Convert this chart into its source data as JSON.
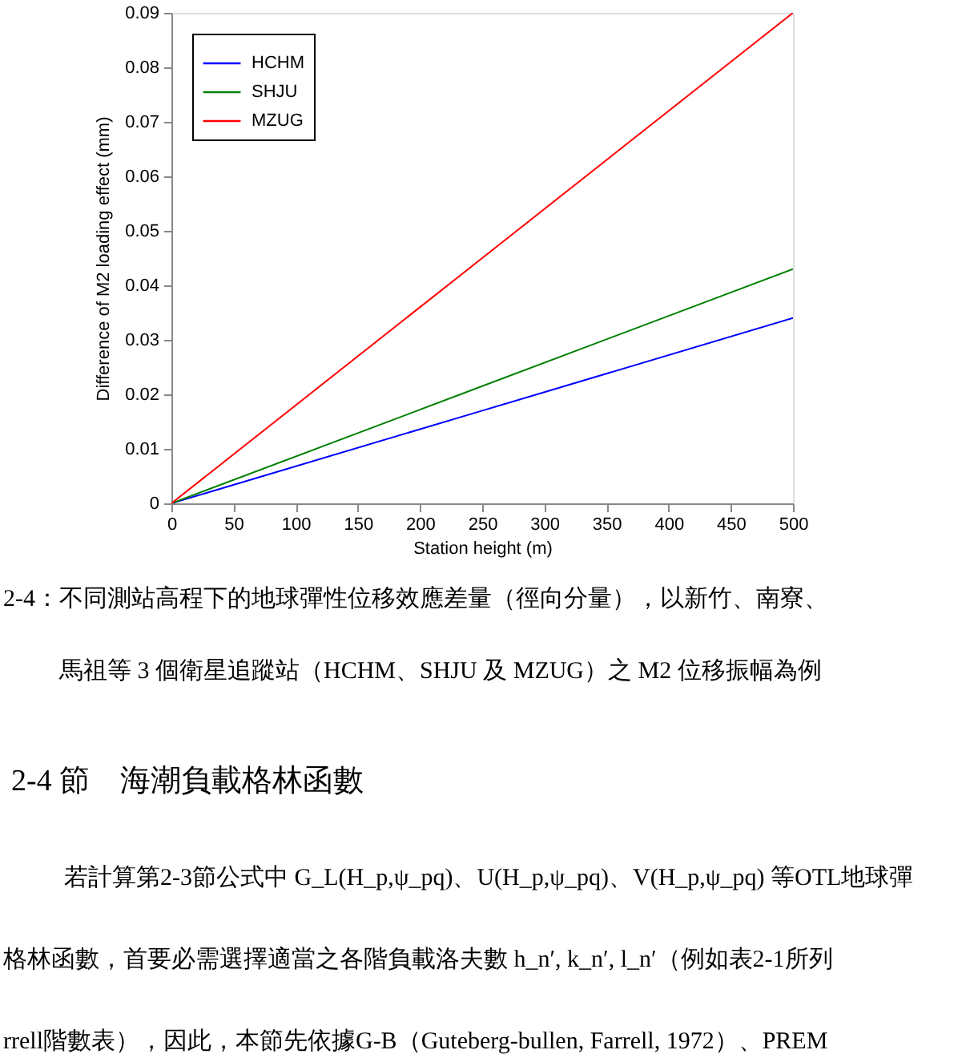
{
  "chart_data": {
    "type": "line",
    "xlabel": "Station height (m)",
    "ylabel": "Difference of M2 loading effect (mm)",
    "x": [
      0,
      250,
      500
    ],
    "series": [
      {
        "name": "HCHM",
        "color": "#0000ff",
        "values": [
          0,
          0.017,
          0.034
        ]
      },
      {
        "name": "SHJU",
        "color": "#008000",
        "values": [
          0,
          0.0215,
          0.043
        ]
      },
      {
        "name": "MZUG",
        "color": "#ff0000",
        "values": [
          0,
          0.045,
          0.09
        ]
      }
    ],
    "xlim": [
      0,
      500
    ],
    "ylim": [
      0,
      0.09
    ],
    "xticks": [
      0,
      50,
      100,
      150,
      200,
      250,
      300,
      350,
      400,
      450,
      500
    ],
    "yticks": [
      0,
      0.01,
      0.02,
      0.03,
      0.04,
      0.05,
      0.06,
      0.07,
      0.08,
      0.09
    ],
    "legend": "top left",
    "grid": false,
    "marker": "none",
    "line_style": "solid",
    "annotations": [
      "2-4：不同測站高程下的地球彈性位移效應差量（徑向分量），以新竹、南寮、",
      "馬祖等 3 個衛星追蹤站（HCHM、SHJU 及 MZUG）之 M2 位移振幅為例",
      "2-4 節　海潮負載格林函數",
      "若計算第2-3節公式中 G_L(H_p,ψ_pq)、U(H_p,ψ_pq)、V(H_p,ψ_pq) 等OTL地球彈",
      "格林函數，首要必需選擇適當之各階負載洛夫數 h_n′, k_n′, l_n′（例如表2-1所列",
      "rrell階數表），因此，本節先依據G-B（Guteberg-bullen, Farrell, 1972）、PREM"
    ]
  }
}
